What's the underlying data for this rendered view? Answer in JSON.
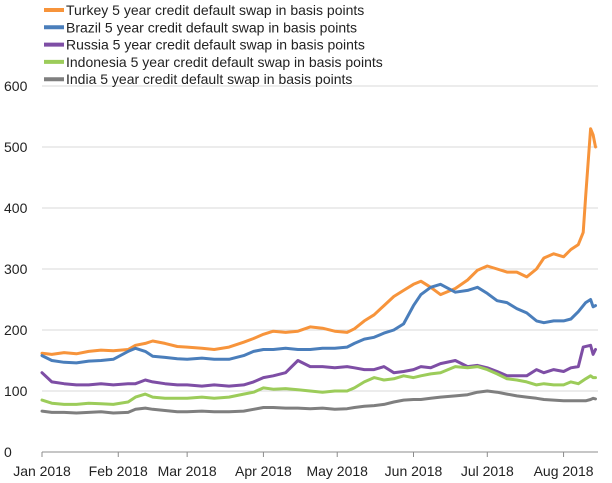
{
  "chart_data": {
    "type": "line",
    "title": "",
    "xlabel": "",
    "ylabel": "",
    "ylim": [
      0,
      600
    ],
    "yticks": [
      "0",
      "100",
      "200",
      "300",
      "400",
      "500",
      "600"
    ],
    "xtick_labels": [
      "Jan 2018",
      "Feb 2018",
      "Mar 2018",
      "Apr 2018",
      "May 2018",
      "Jun 2018",
      "Jul 2018",
      "Aug 2018"
    ],
    "xtick_dates": [
      "2018-01-01",
      "2018-02-01",
      "2018-03-01",
      "2018-04-01",
      "2018-05-01",
      "2018-06-01",
      "2018-07-01",
      "2018-08-01"
    ],
    "xlim": [
      "2018-01-01",
      "2018-08-15"
    ],
    "grid": "horizontal",
    "legend_position": "top-left",
    "series": [
      {
        "name": "Turkey 5 year credit default swap in basis points",
        "color": "#f7943b",
        "points": [
          [
            "2018-01-01",
            162
          ],
          [
            "2018-01-05",
            160
          ],
          [
            "2018-01-10",
            163
          ],
          [
            "2018-01-15",
            161
          ],
          [
            "2018-01-20",
            165
          ],
          [
            "2018-01-25",
            167
          ],
          [
            "2018-01-30",
            166
          ],
          [
            "2018-02-05",
            168
          ],
          [
            "2018-02-08",
            175
          ],
          [
            "2018-02-12",
            178
          ],
          [
            "2018-02-15",
            182
          ],
          [
            "2018-02-20",
            178
          ],
          [
            "2018-02-25",
            173
          ],
          [
            "2018-03-01",
            172
          ],
          [
            "2018-03-07",
            170
          ],
          [
            "2018-03-12",
            168
          ],
          [
            "2018-03-18",
            172
          ],
          [
            "2018-03-24",
            180
          ],
          [
            "2018-03-28",
            186
          ],
          [
            "2018-04-01",
            193
          ],
          [
            "2018-04-05",
            198
          ],
          [
            "2018-04-10",
            196
          ],
          [
            "2018-04-15",
            198
          ],
          [
            "2018-04-20",
            205
          ],
          [
            "2018-04-25",
            203
          ],
          [
            "2018-04-30",
            198
          ],
          [
            "2018-05-05",
            196
          ],
          [
            "2018-05-08",
            202
          ],
          [
            "2018-05-12",
            215
          ],
          [
            "2018-05-16",
            225
          ],
          [
            "2018-05-20",
            240
          ],
          [
            "2018-05-24",
            255
          ],
          [
            "2018-05-28",
            265
          ],
          [
            "2018-06-01",
            275
          ],
          [
            "2018-06-04",
            280
          ],
          [
            "2018-06-08",
            270
          ],
          [
            "2018-06-12",
            258
          ],
          [
            "2018-06-18",
            268
          ],
          [
            "2018-06-23",
            282
          ],
          [
            "2018-06-27",
            298
          ],
          [
            "2018-07-01",
            305
          ],
          [
            "2018-07-05",
            300
          ],
          [
            "2018-07-09",
            295
          ],
          [
            "2018-07-13",
            295
          ],
          [
            "2018-07-17",
            287
          ],
          [
            "2018-07-21",
            300
          ],
          [
            "2018-07-24",
            318
          ],
          [
            "2018-07-28",
            325
          ],
          [
            "2018-08-01",
            320
          ],
          [
            "2018-08-04",
            332
          ],
          [
            "2018-08-07",
            340
          ],
          [
            "2018-08-09",
            360
          ],
          [
            "2018-08-10",
            420
          ],
          [
            "2018-08-12",
            530
          ],
          [
            "2018-08-13",
            520
          ],
          [
            "2018-08-14",
            500
          ]
        ]
      },
      {
        "name": "Brazil 5 year credit default swap in basis points",
        "color": "#4a7ebb",
        "points": [
          [
            "2018-01-01",
            158
          ],
          [
            "2018-01-05",
            150
          ],
          [
            "2018-01-10",
            147
          ],
          [
            "2018-01-15",
            146
          ],
          [
            "2018-01-20",
            149
          ],
          [
            "2018-01-25",
            150
          ],
          [
            "2018-01-30",
            152
          ],
          [
            "2018-02-05",
            165
          ],
          [
            "2018-02-08",
            170
          ],
          [
            "2018-02-12",
            165
          ],
          [
            "2018-02-15",
            157
          ],
          [
            "2018-02-20",
            155
          ],
          [
            "2018-02-25",
            153
          ],
          [
            "2018-03-01",
            152
          ],
          [
            "2018-03-07",
            154
          ],
          [
            "2018-03-12",
            152
          ],
          [
            "2018-03-18",
            152
          ],
          [
            "2018-03-24",
            158
          ],
          [
            "2018-03-28",
            165
          ],
          [
            "2018-04-01",
            168
          ],
          [
            "2018-04-05",
            168
          ],
          [
            "2018-04-10",
            170
          ],
          [
            "2018-04-15",
            168
          ],
          [
            "2018-04-20",
            168
          ],
          [
            "2018-04-25",
            170
          ],
          [
            "2018-04-30",
            170
          ],
          [
            "2018-05-05",
            172
          ],
          [
            "2018-05-08",
            178
          ],
          [
            "2018-05-12",
            185
          ],
          [
            "2018-05-16",
            188
          ],
          [
            "2018-05-20",
            195
          ],
          [
            "2018-05-24",
            200
          ],
          [
            "2018-05-28",
            210
          ],
          [
            "2018-06-01",
            240
          ],
          [
            "2018-06-04",
            258
          ],
          [
            "2018-06-08",
            270
          ],
          [
            "2018-06-12",
            275
          ],
          [
            "2018-06-18",
            262
          ],
          [
            "2018-06-23",
            265
          ],
          [
            "2018-06-27",
            270
          ],
          [
            "2018-07-01",
            260
          ],
          [
            "2018-07-05",
            248
          ],
          [
            "2018-07-09",
            245
          ],
          [
            "2018-07-13",
            235
          ],
          [
            "2018-07-17",
            228
          ],
          [
            "2018-07-21",
            215
          ],
          [
            "2018-07-24",
            212
          ],
          [
            "2018-07-28",
            215
          ],
          [
            "2018-08-01",
            215
          ],
          [
            "2018-08-04",
            218
          ],
          [
            "2018-08-07",
            230
          ],
          [
            "2018-08-10",
            245
          ],
          [
            "2018-08-12",
            250
          ],
          [
            "2018-08-13",
            238
          ],
          [
            "2018-08-14",
            240
          ]
        ]
      },
      {
        "name": "Russia 5 year credit default swap in basis points",
        "color": "#7e4ea5",
        "points": [
          [
            "2018-01-01",
            130
          ],
          [
            "2018-01-05",
            115
          ],
          [
            "2018-01-10",
            112
          ],
          [
            "2018-01-15",
            110
          ],
          [
            "2018-01-20",
            110
          ],
          [
            "2018-01-25",
            112
          ],
          [
            "2018-01-30",
            110
          ],
          [
            "2018-02-05",
            112
          ],
          [
            "2018-02-08",
            112
          ],
          [
            "2018-02-12",
            118
          ],
          [
            "2018-02-15",
            115
          ],
          [
            "2018-02-20",
            112
          ],
          [
            "2018-02-25",
            110
          ],
          [
            "2018-03-01",
            110
          ],
          [
            "2018-03-07",
            108
          ],
          [
            "2018-03-12",
            110
          ],
          [
            "2018-03-18",
            108
          ],
          [
            "2018-03-24",
            110
          ],
          [
            "2018-03-28",
            115
          ],
          [
            "2018-04-01",
            122
          ],
          [
            "2018-04-05",
            125
          ],
          [
            "2018-04-10",
            130
          ],
          [
            "2018-04-15",
            150
          ],
          [
            "2018-04-20",
            140
          ],
          [
            "2018-04-25",
            140
          ],
          [
            "2018-04-30",
            138
          ],
          [
            "2018-05-05",
            140
          ],
          [
            "2018-05-08",
            138
          ],
          [
            "2018-05-12",
            135
          ],
          [
            "2018-05-16",
            135
          ],
          [
            "2018-05-20",
            140
          ],
          [
            "2018-05-24",
            130
          ],
          [
            "2018-05-28",
            132
          ],
          [
            "2018-06-01",
            135
          ],
          [
            "2018-06-04",
            140
          ],
          [
            "2018-06-08",
            138
          ],
          [
            "2018-06-12",
            145
          ],
          [
            "2018-06-18",
            150
          ],
          [
            "2018-06-23",
            140
          ],
          [
            "2018-06-27",
            142
          ],
          [
            "2018-07-01",
            138
          ],
          [
            "2018-07-05",
            132
          ],
          [
            "2018-07-09",
            125
          ],
          [
            "2018-07-13",
            125
          ],
          [
            "2018-07-17",
            125
          ],
          [
            "2018-07-21",
            135
          ],
          [
            "2018-07-24",
            130
          ],
          [
            "2018-07-28",
            135
          ],
          [
            "2018-08-01",
            132
          ],
          [
            "2018-08-04",
            138
          ],
          [
            "2018-08-07",
            140
          ],
          [
            "2018-08-09",
            172
          ],
          [
            "2018-08-12",
            175
          ],
          [
            "2018-08-13",
            160
          ],
          [
            "2018-08-14",
            168
          ]
        ]
      },
      {
        "name": "Indonesia 5 year credit default swap in basis points",
        "color": "#9ccc5a",
        "points": [
          [
            "2018-01-01",
            85
          ],
          [
            "2018-01-05",
            80
          ],
          [
            "2018-01-10",
            78
          ],
          [
            "2018-01-15",
            78
          ],
          [
            "2018-01-20",
            80
          ],
          [
            "2018-01-25",
            79
          ],
          [
            "2018-01-30",
            78
          ],
          [
            "2018-02-05",
            82
          ],
          [
            "2018-02-08",
            90
          ],
          [
            "2018-02-12",
            95
          ],
          [
            "2018-02-15",
            90
          ],
          [
            "2018-02-20",
            88
          ],
          [
            "2018-02-25",
            88
          ],
          [
            "2018-03-01",
            88
          ],
          [
            "2018-03-07",
            90
          ],
          [
            "2018-03-12",
            88
          ],
          [
            "2018-03-18",
            90
          ],
          [
            "2018-03-24",
            95
          ],
          [
            "2018-03-28",
            98
          ],
          [
            "2018-04-01",
            105
          ],
          [
            "2018-04-05",
            103
          ],
          [
            "2018-04-10",
            104
          ],
          [
            "2018-04-15",
            102
          ],
          [
            "2018-04-20",
            100
          ],
          [
            "2018-04-25",
            98
          ],
          [
            "2018-04-30",
            100
          ],
          [
            "2018-05-05",
            100
          ],
          [
            "2018-05-08",
            105
          ],
          [
            "2018-05-12",
            115
          ],
          [
            "2018-05-16",
            122
          ],
          [
            "2018-05-20",
            118
          ],
          [
            "2018-05-24",
            120
          ],
          [
            "2018-05-28",
            125
          ],
          [
            "2018-06-01",
            122
          ],
          [
            "2018-06-04",
            125
          ],
          [
            "2018-06-08",
            128
          ],
          [
            "2018-06-12",
            130
          ],
          [
            "2018-06-18",
            140
          ],
          [
            "2018-06-23",
            138
          ],
          [
            "2018-06-27",
            140
          ],
          [
            "2018-07-01",
            135
          ],
          [
            "2018-07-05",
            128
          ],
          [
            "2018-07-09",
            120
          ],
          [
            "2018-07-13",
            118
          ],
          [
            "2018-07-17",
            115
          ],
          [
            "2018-07-21",
            110
          ],
          [
            "2018-07-24",
            112
          ],
          [
            "2018-07-28",
            110
          ],
          [
            "2018-08-01",
            110
          ],
          [
            "2018-08-04",
            115
          ],
          [
            "2018-08-07",
            112
          ],
          [
            "2018-08-10",
            120
          ],
          [
            "2018-08-12",
            125
          ],
          [
            "2018-08-13",
            122
          ],
          [
            "2018-08-14",
            122
          ]
        ]
      },
      {
        "name": "India 5 year credit default swap in basis points",
        "color": "#7f7f7f",
        "points": [
          [
            "2018-01-01",
            67
          ],
          [
            "2018-01-05",
            65
          ],
          [
            "2018-01-10",
            65
          ],
          [
            "2018-01-15",
            64
          ],
          [
            "2018-01-20",
            65
          ],
          [
            "2018-01-25",
            66
          ],
          [
            "2018-01-30",
            64
          ],
          [
            "2018-02-05",
            65
          ],
          [
            "2018-02-08",
            70
          ],
          [
            "2018-02-12",
            72
          ],
          [
            "2018-02-15",
            70
          ],
          [
            "2018-02-20",
            68
          ],
          [
            "2018-02-25",
            66
          ],
          [
            "2018-03-01",
            66
          ],
          [
            "2018-03-07",
            67
          ],
          [
            "2018-03-12",
            66
          ],
          [
            "2018-03-18",
            66
          ],
          [
            "2018-03-24",
            67
          ],
          [
            "2018-03-28",
            70
          ],
          [
            "2018-04-01",
            73
          ],
          [
            "2018-04-05",
            73
          ],
          [
            "2018-04-10",
            72
          ],
          [
            "2018-04-15",
            72
          ],
          [
            "2018-04-20",
            71
          ],
          [
            "2018-04-25",
            72
          ],
          [
            "2018-04-30",
            70
          ],
          [
            "2018-05-05",
            71
          ],
          [
            "2018-05-08",
            73
          ],
          [
            "2018-05-12",
            75
          ],
          [
            "2018-05-16",
            76
          ],
          [
            "2018-05-20",
            78
          ],
          [
            "2018-05-24",
            82
          ],
          [
            "2018-05-28",
            85
          ],
          [
            "2018-06-01",
            86
          ],
          [
            "2018-06-04",
            86
          ],
          [
            "2018-06-08",
            88
          ],
          [
            "2018-06-12",
            90
          ],
          [
            "2018-06-18",
            92
          ],
          [
            "2018-06-23",
            94
          ],
          [
            "2018-06-27",
            98
          ],
          [
            "2018-07-01",
            100
          ],
          [
            "2018-07-05",
            98
          ],
          [
            "2018-07-09",
            95
          ],
          [
            "2018-07-13",
            92
          ],
          [
            "2018-07-17",
            90
          ],
          [
            "2018-07-21",
            88
          ],
          [
            "2018-07-24",
            86
          ],
          [
            "2018-07-28",
            85
          ],
          [
            "2018-08-01",
            84
          ],
          [
            "2018-08-04",
            84
          ],
          [
            "2018-08-07",
            84
          ],
          [
            "2018-08-10",
            84
          ],
          [
            "2018-08-12",
            86
          ],
          [
            "2018-08-13",
            88
          ],
          [
            "2018-08-14",
            87
          ]
        ]
      }
    ]
  }
}
